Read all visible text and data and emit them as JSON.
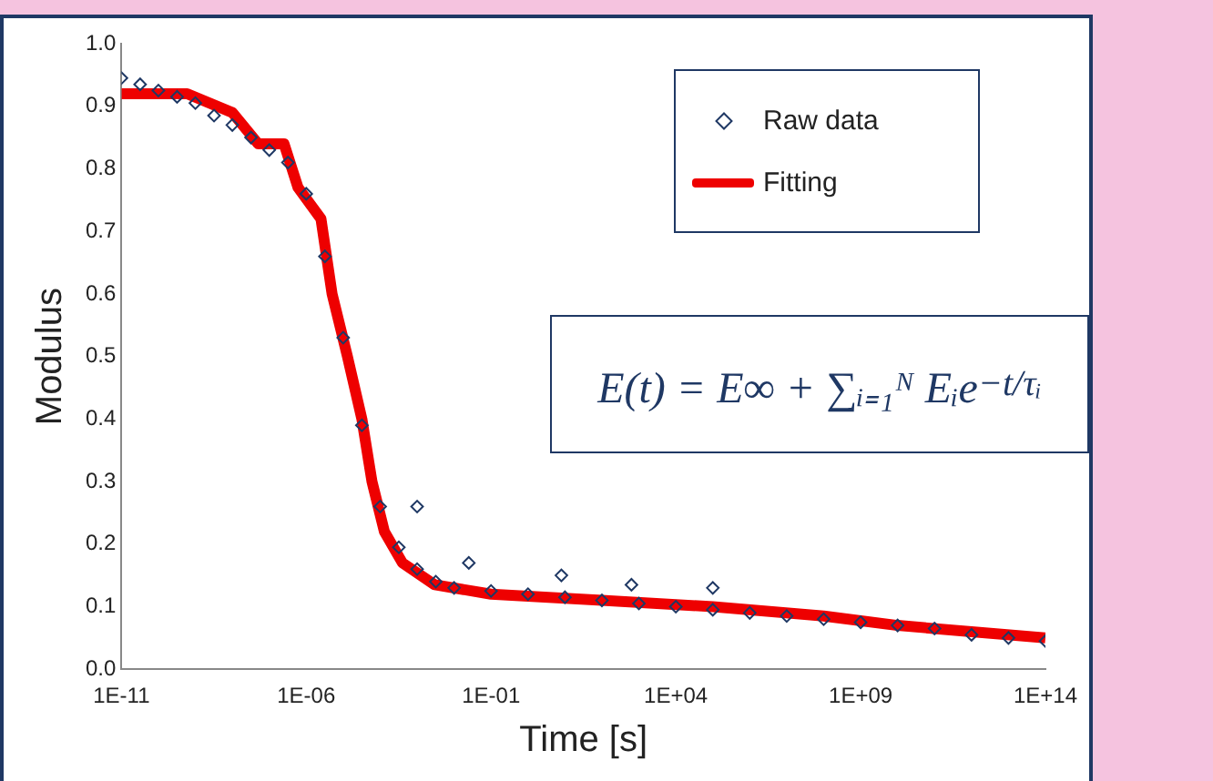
{
  "chart_data": {
    "type": "scatter",
    "xlabel": "Time [s]",
    "ylabel": "Modulus",
    "log": "x",
    "grid": false,
    "legend": "top right",
    "xlim": [
      1e-11,
      100000000000000.0
    ],
    "xticks": [
      {
        "value": 1e-11,
        "label": "1E-11"
      },
      {
        "value": 1e-06,
        "label": "1E-06"
      },
      {
        "value": 0.1,
        "label": "1E-01"
      },
      {
        "value": 10000.0,
        "label": "1E+04"
      },
      {
        "value": 1000000000.0,
        "label": "1E+09"
      },
      {
        "value": 100000000000000.0,
        "label": "1E+14"
      }
    ],
    "ylim": [
      0,
      1
    ],
    "yticks": [
      {
        "value": 0,
        "label": "0.0"
      },
      {
        "value": 0.1,
        "label": "0.1"
      },
      {
        "value": 0.2,
        "label": "0.2"
      },
      {
        "value": 0.3,
        "label": "0.3"
      },
      {
        "value": 0.4,
        "label": "0.4"
      },
      {
        "value": 0.5,
        "label": "0.5"
      },
      {
        "value": 0.6,
        "label": "0.6"
      },
      {
        "value": 0.7,
        "label": "0.7"
      },
      {
        "value": 0.8,
        "label": "0.8"
      },
      {
        "value": 0.9,
        "label": "0.9"
      },
      {
        "value": 1,
        "label": "1.0"
      }
    ],
    "annotations": [
      "E(t) = E∞ + ∑ᵢ₌₁ᴺ Eᵢe$^{−t/τᵢ}$"
    ],
    "series": [
      {
        "name": "Raw data",
        "marker": "diamond",
        "color": "#1f3864",
        "x": [
          1e-11,
          3.2e-11,
          1e-10,
          3.2e-10,
          1e-09,
          3.2e-09,
          1e-08,
          3.2e-08,
          1e-07,
          3.2e-07,
          1e-06,
          3.2e-06,
          1e-05,
          3.2e-05,
          0.0001,
          0.00032,
          0.001,
          0.001,
          0.0032,
          0.01,
          0.025,
          0.1,
          1,
          10,
          8,
          100,
          1000,
          630,
          10000.0,
          100000.0,
          100000.0,
          1000000.0,
          10000000.0,
          100000000.0,
          1000000000.0,
          10000000000.0,
          100000000000.0,
          1000000000000.0,
          10000000000000.0,
          100000000000000.0
        ],
        "values": [
          0.945,
          0.935,
          0.925,
          0.915,
          0.905,
          0.885,
          0.87,
          0.85,
          0.83,
          0.81,
          0.76,
          0.66,
          0.53,
          0.39,
          0.26,
          0.195,
          0.16,
          0.26,
          0.14,
          0.13,
          0.17,
          0.125,
          0.12,
          0.115,
          0.15,
          0.11,
          0.105,
          0.135,
          0.1,
          0.095,
          0.13,
          0.09,
          0.085,
          0.08,
          0.075,
          0.07,
          0.065,
          0.055,
          0.05,
          0.045
        ]
      },
      {
        "name": "Fitting",
        "type": "line",
        "marker": "none",
        "color": "#ee0000",
        "x": [
          1e-11,
          6e-10,
          1e-08,
          5e-08,
          2.5e-07,
          6e-07,
          2.5e-06,
          5e-06,
          1.3e-05,
          3.2e-05,
          6e-05,
          0.00013,
          0.0004,
          0.003,
          0.1,
          100,
          100000.0,
          100000000.0,
          10000000000.0,
          1000000000000.0,
          100000000000000.0
        ],
        "values": [
          0.92,
          0.92,
          0.89,
          0.84,
          0.84,
          0.77,
          0.72,
          0.6,
          0.5,
          0.4,
          0.3,
          0.22,
          0.17,
          0.135,
          0.12,
          0.11,
          0.1,
          0.085,
          0.07,
          0.06,
          0.05
        ]
      }
    ]
  }
}
